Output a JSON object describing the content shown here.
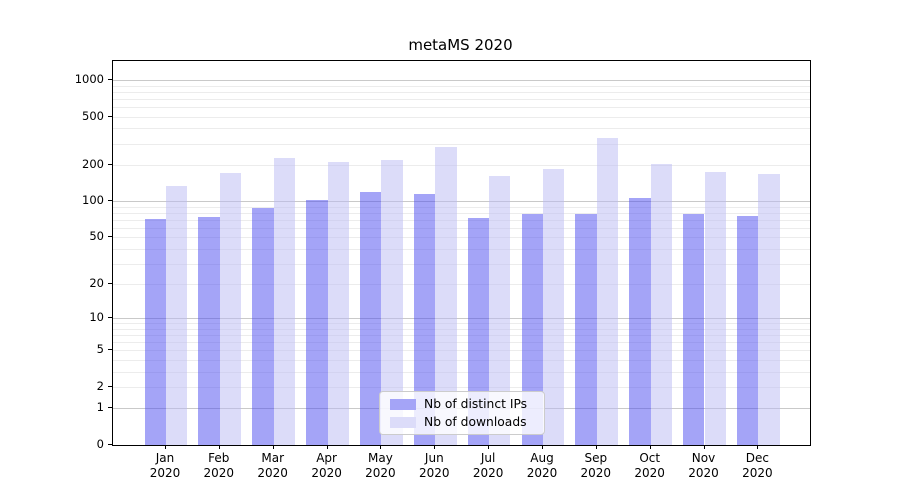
{
  "chart_data": {
    "type": "bar",
    "title": "metaMS 2020",
    "categories": [
      "Jan 2020",
      "Feb 2020",
      "Mar 2020",
      "Apr 2020",
      "May 2020",
      "Jun 2020",
      "Jul 2020",
      "Aug 2020",
      "Sep 2020",
      "Oct 2020",
      "Nov 2020",
      "Dec 2020"
    ],
    "series": [
      {
        "name": "Nb of distinct IPs",
        "color": "#a4a4f7",
        "bar_rgba": "rgba(73,73,239,0.5)",
        "values": [
          71,
          74,
          88,
          102,
          120,
          115,
          73,
          78,
          78,
          107,
          79,
          76
        ]
      },
      {
        "name": "Nb of downloads",
        "color": "#dcdcf9",
        "bar_rgba": "rgba(185,185,243,0.5)",
        "values": [
          134,
          170,
          229,
          212,
          219,
          282,
          162,
          186,
          333,
          202,
          175,
          167
        ]
      }
    ],
    "xlabel": "",
    "ylabel": "",
    "yscale": "log1p",
    "yticks": [
      1000,
      500,
      200,
      100,
      50,
      20,
      10,
      5,
      2,
      1,
      0
    ],
    "ylim": [
      0,
      1400
    ],
    "grid": "horizontal log major+minor",
    "legend_position": "lower center inside plot"
  },
  "colors": {
    "background": "#ffffff",
    "axis": "#000000",
    "grid_major": "#c9c9c9",
    "grid_minor": "#ececec",
    "legend_border": "#cccccc",
    "legend_bg": "rgba(255,255,255,0.8)",
    "text": "#000000"
  }
}
